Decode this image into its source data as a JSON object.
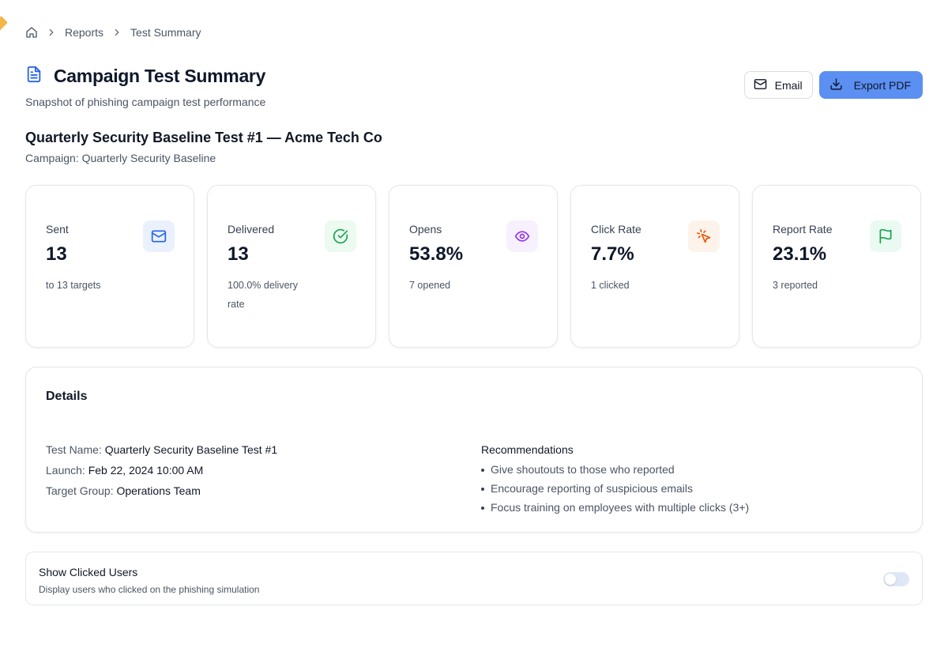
{
  "breadcrumb": {
    "home_icon": "home-icon",
    "items": [
      "Reports",
      "Test Summary"
    ]
  },
  "header": {
    "title": "Campaign Test Summary",
    "subtitle": "Snapshot of phishing campaign test performance",
    "title_icon": "document-icon"
  },
  "actions": {
    "email_label": "Email",
    "export_label": "Export PDF",
    "primary_color": "#5b8ff2"
  },
  "test": {
    "title": "Quarterly Security Baseline Test #1 — Acme Tech Co",
    "campaign": "Campaign: Quarterly Security Baseline"
  },
  "stats": [
    {
      "label": "Sent",
      "value": "13",
      "sub": "to 13 targets",
      "icon": "mail-icon",
      "icon_color": "#2563eb",
      "icon_bg": "#eaf1fd"
    },
    {
      "label": "Delivered",
      "value": "13",
      "sub": "100.0% delivery rate",
      "icon": "check-circle-icon",
      "icon_color": "#16a34a",
      "icon_bg": "#ecfaf0"
    },
    {
      "label": "Opens",
      "value": "53.8%",
      "sub": "7 opened",
      "icon": "eye-icon",
      "icon_color": "#9333ea",
      "icon_bg": "#f7f0fd"
    },
    {
      "label": "Click Rate",
      "value": "7.7%",
      "sub": "1 clicked",
      "icon": "click-pointer-icon",
      "icon_color": "#ea580c",
      "icon_bg": "#fdf3ea"
    },
    {
      "label": "Report Rate",
      "value": "23.1%",
      "sub": "3 reported",
      "icon": "flag-icon",
      "icon_color": "#16a34a",
      "icon_bg": "#eafaf2"
    }
  ],
  "details": {
    "heading": "Details",
    "test_name_label": "Test Name:",
    "test_name": "Quarterly Security Baseline Test #1",
    "launch_label": "Launch:",
    "launch": "Feb 22, 2024 10:00 AM",
    "target_group_label": "Target Group:",
    "target_group": "Operations Team",
    "recommendations_title": "Recommendations",
    "recommendations": [
      "Give shoutouts to those who reported",
      "Encourage reporting of suspicious emails",
      "Focus training on employees with multiple clicks (3+)"
    ]
  },
  "clicked_users": {
    "title": "Show Clicked Users",
    "description": "Display users who clicked on the phishing simulation",
    "enabled": false
  }
}
